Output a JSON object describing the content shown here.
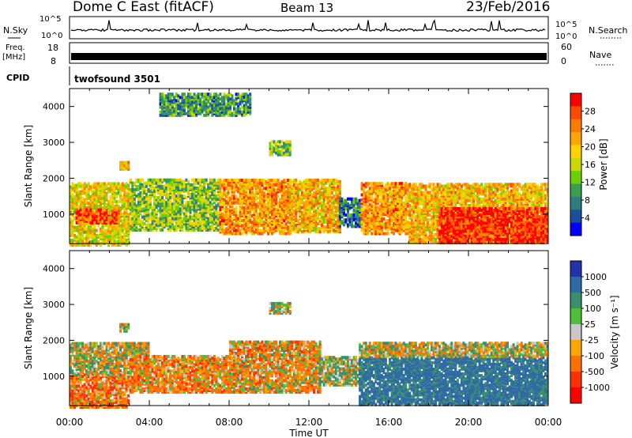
{
  "header": {
    "site": "Dome C East (fitACF)",
    "beam": "Beam 13",
    "date": "23/Feb/2016"
  },
  "strip": {
    "nsky_label": "N.Sky",
    "nsky_ticks": [
      "10^5",
      "10^0"
    ],
    "nsearch_label": "N.Search",
    "nsearch_ticks": [
      "10^5",
      "10^0"
    ],
    "freq_label": "Freq.",
    "freq_unit": "[MHz]",
    "freq_ticks": [
      "18",
      "8"
    ],
    "nave_label": "Nave",
    "nave_ticks": [
      "60",
      "0"
    ],
    "cpid_label": "CPID",
    "cpid_value": "twofsound 3501"
  },
  "chart_data": [
    {
      "type": "heatmap",
      "name": "power",
      "ylabel": "Slant Range [km]",
      "yticks": [
        1000,
        2000,
        3000,
        4000
      ],
      "ylim": [
        180,
        4500
      ],
      "xlim": [
        0,
        24
      ],
      "colorbar": {
        "label": "Power [dB]",
        "ticks": [
          "28",
          "24",
          "20",
          "16",
          "12",
          "8",
          "4"
        ],
        "colors": [
          "#ff0000",
          "#ff4a00",
          "#ff7a00",
          "#ffa500",
          "#ffd200",
          "#c8d800",
          "#6ccf00",
          "#3a9d50",
          "#2e7d80",
          "#1a4fa0",
          "#0000ff"
        ]
      },
      "bands": [
        {
          "t0": 0.0,
          "t1": 3.0,
          "r0": 180,
          "r1": 1900,
          "v": 18
        },
        {
          "t0": 0.3,
          "t1": 2.5,
          "r0": 800,
          "r1": 1200,
          "v": 26
        },
        {
          "t0": 3.0,
          "t1": 7.5,
          "r0": 600,
          "r1": 2000,
          "v": 14
        },
        {
          "t0": 7.5,
          "t1": 11.0,
          "r0": 500,
          "r1": 2000,
          "v": 22
        },
        {
          "t0": 11.0,
          "t1": 13.5,
          "r0": 550,
          "r1": 2000,
          "v": 20
        },
        {
          "t0": 13.5,
          "t1": 14.6,
          "r0": 700,
          "r1": 1500,
          "v": 8
        },
        {
          "t0": 14.6,
          "t1": 17.0,
          "r0": 500,
          "r1": 1900,
          "v": 22
        },
        {
          "t0": 17.0,
          "t1": 24.0,
          "r0": 250,
          "r1": 1900,
          "v": 20
        },
        {
          "t0": 18.5,
          "t1": 24.0,
          "r0": 250,
          "r1": 1200,
          "v": 28
        },
        {
          "t0": 10.0,
          "t1": 11.0,
          "r0": 2700,
          "r1": 3100,
          "v": 14
        },
        {
          "t0": 4.5,
          "t1": 9.0,
          "r0": 3800,
          "r1": 4400,
          "v": 10
        },
        {
          "t0": 2.5,
          "t1": 3.0,
          "r0": 2300,
          "r1": 2500,
          "v": 20
        }
      ]
    },
    {
      "type": "heatmap",
      "name": "velocity",
      "ylabel": "Slant Range [km]",
      "yticks": [
        1000,
        2000,
        3000,
        4000
      ],
      "ylim": [
        180,
        4500
      ],
      "xlim": [
        0,
        24
      ],
      "xlabel": "Time UT",
      "xticks": [
        "00:00",
        "04:00",
        "08:00",
        "12:00",
        "16:00",
        "20:00",
        "00:00"
      ],
      "colorbar": {
        "label": "Velocity [m s⁻¹]",
        "ticks": [
          "1000",
          "500",
          "100",
          "25",
          "-25",
          "-100",
          "-500",
          "-1000"
        ],
        "colors": [
          "#2233aa",
          "#2f6aa6",
          "#3c8f6e",
          "#4fbf3a",
          "#c8c8c8",
          "#ffa500",
          "#ff7000",
          "#ff3000",
          "#ff0000"
        ]
      },
      "bands": [
        {
          "t0": 0.0,
          "t1": 3.0,
          "r0": 180,
          "r1": 1100,
          "v": -200
        },
        {
          "t0": 0.0,
          "t1": 4.0,
          "r0": 1100,
          "r1": 2000,
          "v": 0
        },
        {
          "t0": 3.0,
          "t1": 8.0,
          "r0": 600,
          "r1": 1600,
          "v": -150
        },
        {
          "t0": 8.0,
          "t1": 12.5,
          "r0": 600,
          "r1": 2000,
          "v": -100
        },
        {
          "t0": 12.5,
          "t1": 14.5,
          "r0": 800,
          "r1": 1600,
          "v": 50
        },
        {
          "t0": 14.5,
          "t1": 24.0,
          "r0": 250,
          "r1": 1600,
          "v": 400
        },
        {
          "t0": 14.5,
          "t1": 24.0,
          "r0": 1600,
          "r1": 2000,
          "v": 0
        },
        {
          "t0": 10.0,
          "t1": 11.0,
          "r0": 2800,
          "r1": 3100,
          "v": 0
        },
        {
          "t0": 2.5,
          "t1": 3.0,
          "r0": 2300,
          "r1": 2500,
          "v": 100
        }
      ]
    }
  ]
}
